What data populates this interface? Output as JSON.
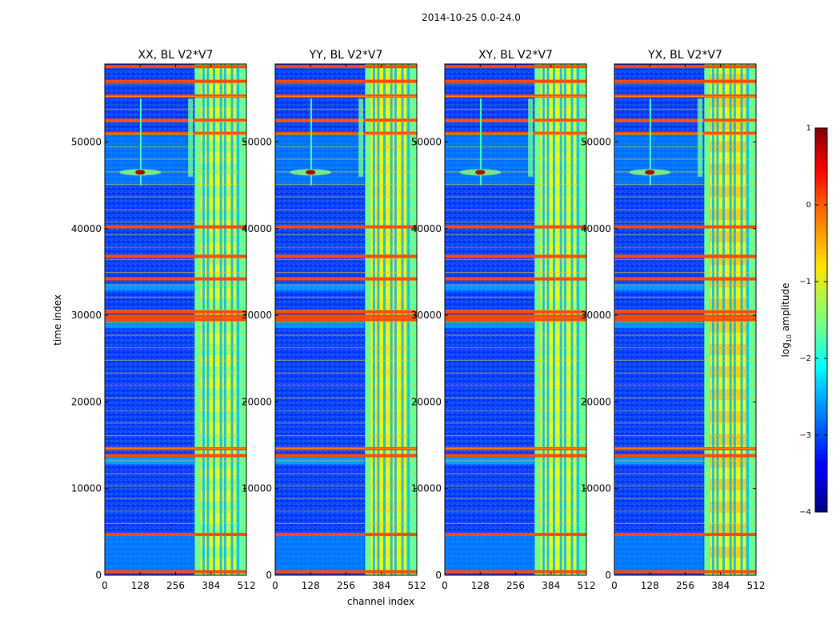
{
  "figure": {
    "suptitle": "2014-10-25 0.0-24.0"
  },
  "chart_data": {
    "type": "heatmap",
    "xlabel": "channel index",
    "ylabel": "time index",
    "xlim": [
      0,
      512
    ],
    "ylim": [
      0,
      59000
    ],
    "xticks": [
      0,
      128,
      256,
      384,
      512
    ],
    "yticks": [
      0,
      10000,
      20000,
      30000,
      40000,
      50000
    ],
    "colorscale": "jet",
    "colorbar": {
      "label": "log$_{10}$ amplitude",
      "label_main": "log",
      "label_sub": "10",
      "label_rest": " amplitude",
      "range": [
        -4,
        1
      ],
      "ticks": [
        1,
        0,
        -1,
        -2,
        -3,
        -4
      ],
      "tick_labels": [
        "1",
        "0",
        "−1",
        "−2",
        "−3",
        "−4"
      ]
    },
    "panels": [
      {
        "title": "XX, BL V2*V7",
        "pol": "XX",
        "baseline": "V2*V7"
      },
      {
        "title": "YY, BL V2*V7",
        "pol": "YY",
        "baseline": "V2*V7"
      },
      {
        "title": "XY, BL V2*V7",
        "pol": "XY",
        "baseline": "V2*V7"
      },
      {
        "title": "YX, BL V2*V7",
        "pol": "YX",
        "baseline": "V2*V7"
      }
    ],
    "features": {
      "background_log_amp": -3.0,
      "band_channels": [
        [
          325,
          345
        ],
        [
          345,
          475
        ],
        [
          475,
          512
        ]
      ],
      "band_log_amp": -1.0,
      "band_stripe_channels": [
        357,
        373,
        395,
        420,
        435,
        460,
        482
      ],
      "rfi_rows_time": [
        400,
        4700,
        13800,
        14600,
        29500,
        29900,
        30400,
        34200,
        36800,
        40200,
        51000,
        52500,
        55300,
        57000,
        58700
      ],
      "rfi_log_amp": 0.0,
      "spike_channel": 128,
      "spike_time": 46500,
      "spike_log_amp": 0.8
    }
  }
}
